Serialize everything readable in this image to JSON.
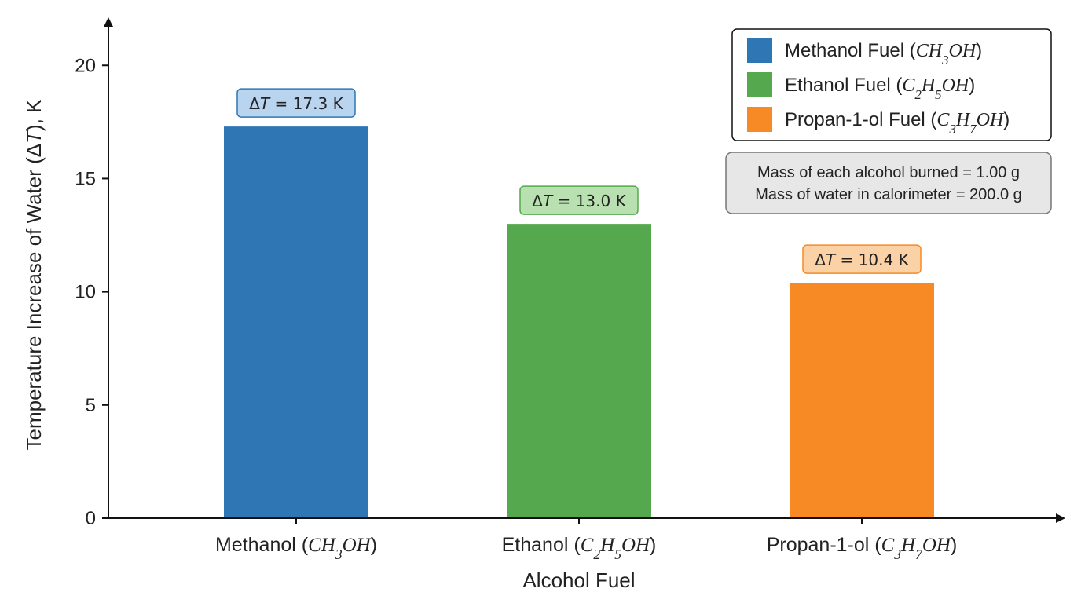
{
  "chart_data": {
    "type": "bar",
    "categories": [
      "Methanol",
      "Ethanol",
      "Propan-1-ol"
    ],
    "formulas": [
      [
        {
          "t": "CH"
        },
        {
          "t": "3",
          "sub": true
        },
        {
          "t": "OH"
        }
      ],
      [
        {
          "t": "C"
        },
        {
          "t": "2",
          "sub": true
        },
        {
          "t": "H"
        },
        {
          "t": "5",
          "sub": true
        },
        {
          "t": "OH"
        }
      ],
      [
        {
          "t": "C"
        },
        {
          "t": "3",
          "sub": true
        },
        {
          "t": "H"
        },
        {
          "t": "7",
          "sub": true
        },
        {
          "t": "OH"
        }
      ]
    ],
    "values": [
      17.3,
      13.0,
      10.4
    ],
    "colors": [
      "#2f77b4",
      "#55a84d",
      "#f78a25"
    ],
    "label_fills": [
      "#b8d4ee",
      "#b9e0b0",
      "#fbd1a6"
    ],
    "label_strokes": [
      "#2f77b4",
      "#55a84d",
      "#f78a25"
    ],
    "data_labels": [
      "17.3 K",
      "13.0 K",
      "10.4 K"
    ],
    "data_label_prefix": "ΔT = ",
    "legend": {
      "entries": [
        "Methanol Fuel",
        "Ethanol Fuel",
        "Propan-1-ol Fuel"
      ],
      "placement": "top-right"
    },
    "note": [
      "Mass of each alcohol burned = 1.00 g",
      "Mass of water in calorimeter = 200.0 g"
    ],
    "xlabel": "Alcohol Fuel",
    "ylabel": "Temperature Increase of Water (ΔT), K",
    "ylim": [
      0,
      21.5
    ],
    "yticks": [
      0,
      5,
      10,
      15,
      20
    ],
    "grid": false
  }
}
